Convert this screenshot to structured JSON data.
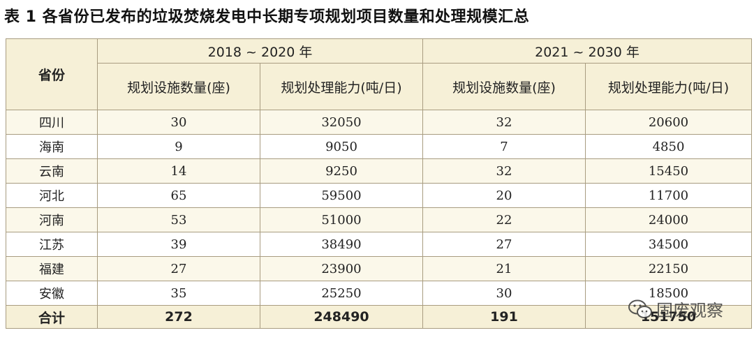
{
  "caption": "表 1 各省份已发布的垃圾焚烧发电中长期专项规划项目数量和处理规模汇总",
  "table": {
    "province_header": "省份",
    "period_headers": [
      "2018 ~ 2020 年",
      "2021 ~ 2030 年"
    ],
    "sub_headers": [
      "规划设施数量(座)",
      "规划处理能力(吨/日)",
      "规划设施数量(座)",
      "规划处理能力(吨/日)"
    ],
    "rows": [
      {
        "province": "四川",
        "v1": "30",
        "v2": "32050",
        "v3": "32",
        "v4": "20600"
      },
      {
        "province": "海南",
        "v1": "9",
        "v2": "9050",
        "v3": "7",
        "v4": "4850"
      },
      {
        "province": "云南",
        "v1": "14",
        "v2": "9250",
        "v3": "32",
        "v4": "15450"
      },
      {
        "province": "河北",
        "v1": "65",
        "v2": "59500",
        "v3": "20",
        "v4": "11700"
      },
      {
        "province": "河南",
        "v1": "53",
        "v2": "51000",
        "v3": "22",
        "v4": "24000"
      },
      {
        "province": "江苏",
        "v1": "39",
        "v2": "38490",
        "v3": "27",
        "v4": "34500"
      },
      {
        "province": "福建",
        "v1": "27",
        "v2": "23900",
        "v3": "21",
        "v4": "22150"
      },
      {
        "province": "安徽",
        "v1": "35",
        "v2": "25250",
        "v3": "30",
        "v4": "18500"
      }
    ],
    "total": {
      "label": "合计",
      "v1": "272",
      "v2": "248490",
      "v3": "191",
      "v4": "151750"
    }
  },
  "watermark": {
    "text": "固废观察",
    "icon": "wechat-icon"
  },
  "colors": {
    "header_bg": "#f6f0d7",
    "stripe_bg": "#fbf8ea",
    "border": "#a89c80"
  }
}
